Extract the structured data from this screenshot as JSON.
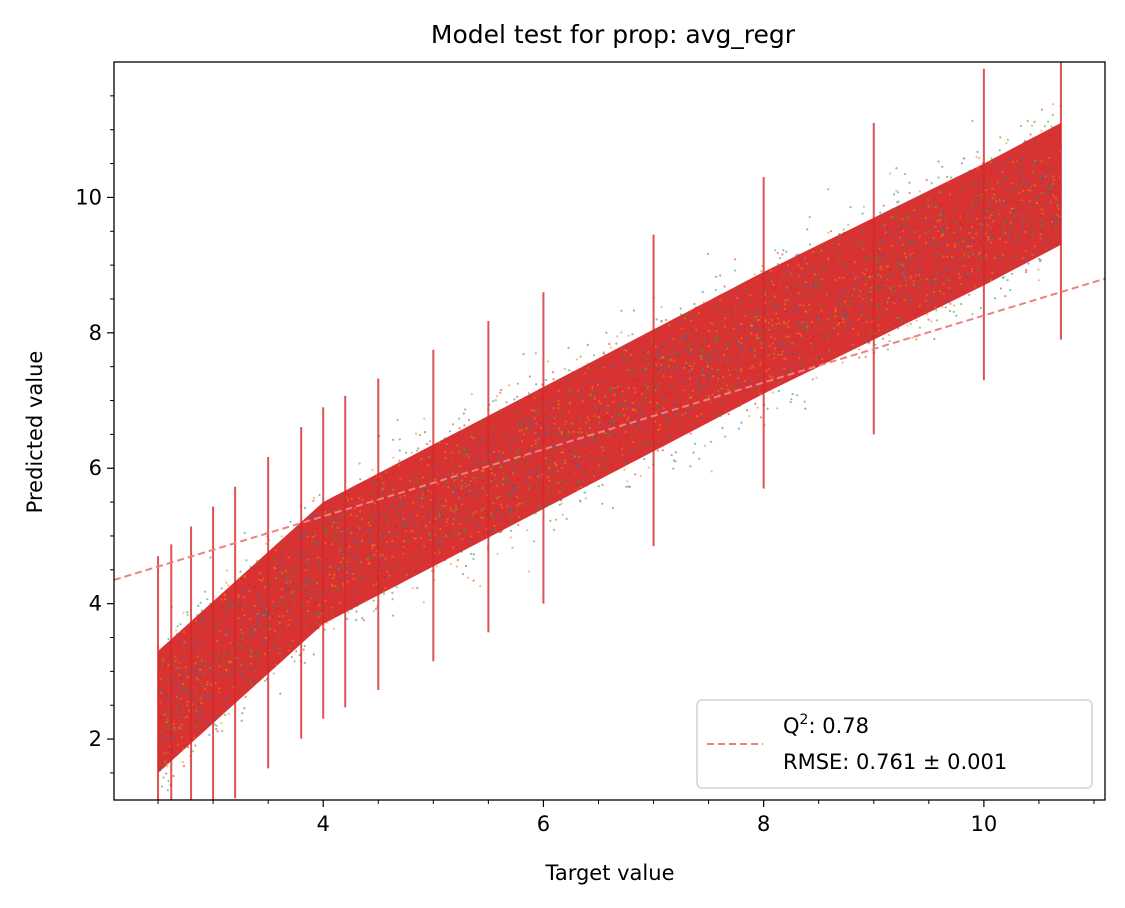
{
  "chart_data": {
    "type": "scatter",
    "title": "Model test for prop: avg_regr",
    "xlabel": "Target value",
    "ylabel": "Predicted value",
    "xlim": [
      2.1,
      11.1
    ],
    "ylim": [
      1.1,
      12.0
    ],
    "x_ticks": [
      4,
      6,
      8,
      10
    ],
    "y_ticks": [
      2,
      4,
      6,
      8,
      10
    ],
    "grid": false,
    "legend_position": "lower-right",
    "series_colors": [
      "#1f77b4",
      "#ff7f0e",
      "#2ca02c",
      "#d62728"
    ],
    "scatter_band": {
      "x_range": [
        2.5,
        10.7
      ],
      "trend_points": [
        [
          2.5,
          2.4
        ],
        [
          4.0,
          4.6
        ],
        [
          6.0,
          6.3
        ],
        [
          8.0,
          8.0
        ],
        [
          10.0,
          9.6
        ],
        [
          10.7,
          10.2
        ]
      ],
      "dense_half_width": 0.9,
      "sparse_half_width": 2.5
    },
    "reference_line": {
      "style": "dashed",
      "color": "#f08080",
      "points": [
        [
          2.1,
          4.35
        ],
        [
          11.1,
          8.8
        ]
      ]
    },
    "legend": {
      "q2_label": "Q",
      "q2_exponent": "2",
      "q2_value": ": 0.78",
      "rmse_text": "RMSE: 0.761 ± 0.001"
    },
    "annotations": [
      {
        "label": "Q2",
        "value": 0.78
      },
      {
        "label": "RMSE",
        "value": 0.761,
        "error": 0.001
      }
    ]
  }
}
